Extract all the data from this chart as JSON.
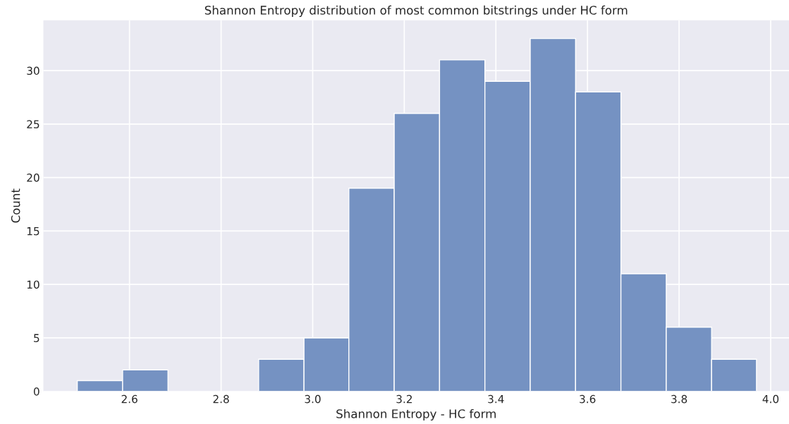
{
  "chart_data": {
    "type": "histogram",
    "title": "Shannon Entropy distribution of most common bitstrings under HC form",
    "xlabel": "Shannon Entropy - HC form",
    "ylabel": "Count",
    "bins": [
      2.486,
      2.585,
      2.684,
      2.882,
      2.981,
      3.079,
      3.178,
      3.277,
      3.376,
      3.475,
      3.574,
      3.673,
      3.772,
      3.871,
      3.969
    ],
    "values": [
      1,
      2,
      0,
      3,
      5,
      19,
      26,
      31,
      29,
      33,
      28,
      11,
      6,
      3
    ],
    "color": "#7592c2",
    "xlim": [
      2.412,
      4.04
    ],
    "ylim": [
      0,
      34.7
    ],
    "xticks": [
      2.6,
      2.8,
      {
        "value": 3.0,
        "label": "3.0"
      },
      3.2,
      3.4,
      3.6,
      3.8,
      {
        "value": 4.0,
        "label": "4.0"
      }
    ],
    "yticks": [
      0,
      5,
      10,
      15,
      20,
      25,
      30
    ],
    "grid": true
  }
}
